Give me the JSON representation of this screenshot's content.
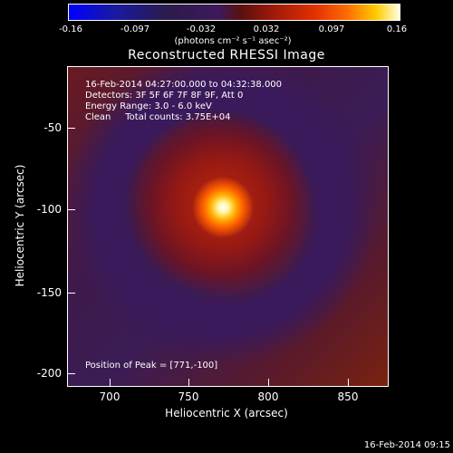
{
  "colorbar": {
    "ticks": [
      "-0.16",
      "-0.097",
      "-0.032",
      "0.032",
      "0.097",
      "0.16"
    ],
    "unit": "(photons cm⁻² s⁻¹ asec⁻²)"
  },
  "title": "Reconstructed RHESSI Image",
  "info": {
    "line1": "16-Feb-2014 04:27:00.000 to 04:32:38.000",
    "line2": "Detectors: 3F 5F 6F 7F 8F 9F, Att 0",
    "line3": "Energy Range: 3.0 - 6.0 keV",
    "line4": "Clean     Total counts: 3.75E+04"
  },
  "peak": "Position of Peak = [771,-100]",
  "axes": {
    "x_title": "Heliocentric X (arcsec)",
    "y_title": "Heliocentric Y (arcsec)",
    "x_ticks": [
      "700",
      "750",
      "800",
      "850"
    ],
    "y_ticks": [
      "-50",
      "-100",
      "-150",
      "-200"
    ]
  },
  "footer": "16-Feb-2014 09:15"
}
